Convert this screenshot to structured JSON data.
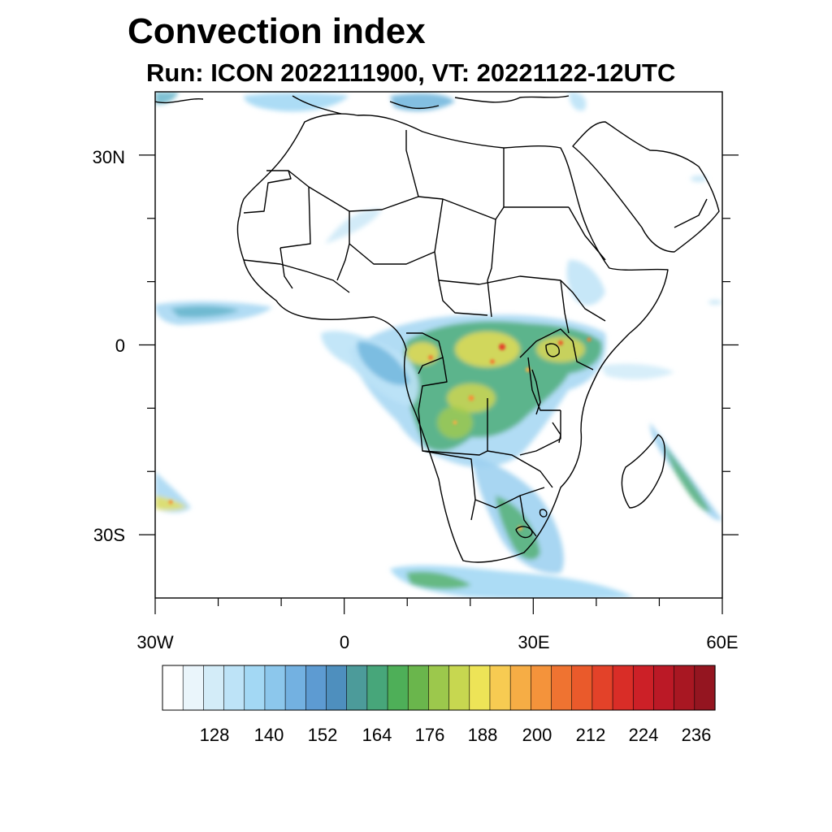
{
  "title": "Convection index",
  "subtitle": "Run: ICON 2022111900,  VT: 20221122-12UTC",
  "map": {
    "extent": {
      "lon": [
        -30,
        60
      ],
      "lat": [
        -40,
        40
      ]
    },
    "lat_ticks": [
      {
        "value": 30,
        "label": "30N"
      },
      {
        "value": 0,
        "label": "0"
      },
      {
        "value": -30,
        "label": "30S"
      }
    ],
    "lon_ticks": [
      {
        "value": -30,
        "label": "30W"
      },
      {
        "value": 0,
        "label": "0"
      },
      {
        "value": 30,
        "label": "30E"
      },
      {
        "value": 60,
        "label": "60E"
      }
    ]
  },
  "colorbar": {
    "labels": [
      "128",
      "140",
      "152",
      "164",
      "176",
      "188",
      "200",
      "212",
      "224",
      "236"
    ],
    "colors": [
      "#ffffff",
      "#eaf5fb",
      "#d3ecf8",
      "#bde3f7",
      "#a3d8f4",
      "#8cc7ec",
      "#73b1e1",
      "#5d9bd2",
      "#4e8fbe",
      "#4c9b9a",
      "#47a67a",
      "#4eaf58",
      "#6ab64c",
      "#9cc84c",
      "#c7d750",
      "#ede457",
      "#f7cb52",
      "#f6ad45",
      "#f4933b",
      "#ef7331",
      "#ea5a2b",
      "#e34229",
      "#d92d27",
      "#cc2027",
      "#bb1926",
      "#a81722",
      "#941520"
    ]
  }
}
